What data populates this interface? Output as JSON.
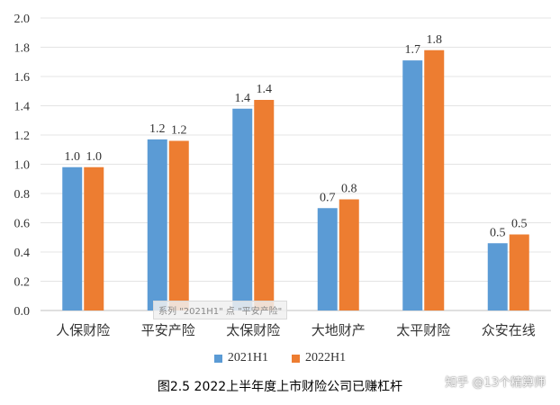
{
  "chart_data": {
    "type": "bar",
    "categories": [
      "人保财险",
      "平安产险",
      "太保财险",
      "大地财产",
      "太平财险",
      "众安在线"
    ],
    "series": [
      {
        "name": "2021H1",
        "values": [
          0.98,
          1.17,
          1.38,
          0.7,
          1.71,
          0.46
        ],
        "labels": [
          "1.0",
          "1.2",
          "1.4",
          "0.7",
          "1.7",
          "0.5"
        ]
      },
      {
        "name": "2022H1",
        "values": [
          0.98,
          1.16,
          1.44,
          0.76,
          1.78,
          0.52
        ],
        "labels": [
          "1.0",
          "1.2",
          "1.4",
          "0.8",
          "1.8",
          "0.5"
        ]
      }
    ],
    "y_ticks": [
      "0.0",
      "0.2",
      "0.4",
      "0.6",
      "0.8",
      "1.0",
      "1.2",
      "1.4",
      "1.6",
      "1.8",
      "2.0"
    ],
    "ylim": [
      0,
      2.0
    ],
    "grid": true,
    "legend_position": "bottom",
    "colors": {
      "2021H1": "#5b9bd5",
      "2022H1": "#ed7d31"
    }
  },
  "caption": "图2.5  2022上半年度上市财险公司已赚杠杆",
  "overlay_tag": "系列 \"2021H1\" 点 \"平安产险\"",
  "credit": "知乎 @13个精算师"
}
